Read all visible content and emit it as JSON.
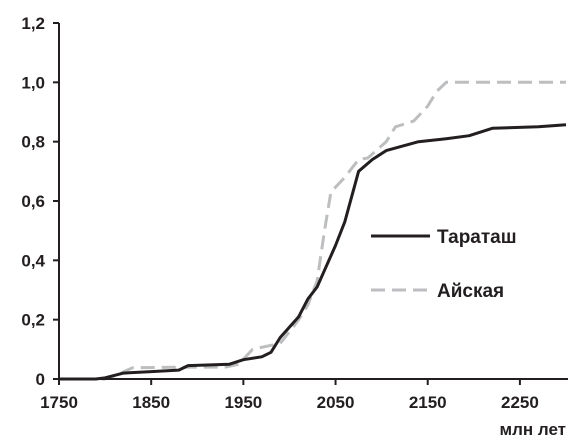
{
  "chart_data": {
    "type": "line",
    "title": "",
    "xlabel": "млн лет",
    "ylabel": "",
    "xlim": [
      1750,
      2300
    ],
    "ylim": [
      0,
      1.2
    ],
    "xticks": [
      1750,
      1850,
      1950,
      2050,
      2150,
      2250
    ],
    "xtick_labels": [
      "1750",
      "1850",
      "1950",
      "2050",
      "2150",
      "2250"
    ],
    "yticks": [
      0,
      0.2,
      0.4,
      0.6,
      0.8,
      1.0,
      1.2
    ],
    "ytick_labels": [
      "0",
      "0,2",
      "0,4",
      "0,6",
      "0,8",
      "1,0",
      "1,2"
    ],
    "grid": false,
    "legend_position": "right-center",
    "series": [
      {
        "name": "Тараташ",
        "style": "solid",
        "color": "#231f20",
        "points": [
          [
            1750,
            0
          ],
          [
            1790,
            0
          ],
          [
            1800,
            0.004
          ],
          [
            1820,
            0.02
          ],
          [
            1850,
            0.025
          ],
          [
            1880,
            0.03
          ],
          [
            1890,
            0.045
          ],
          [
            1935,
            0.05
          ],
          [
            1950,
            0.065
          ],
          [
            1970,
            0.075
          ],
          [
            1980,
            0.09
          ],
          [
            1990,
            0.14
          ],
          [
            2010,
            0.21
          ],
          [
            2020,
            0.27
          ],
          [
            2030,
            0.31
          ],
          [
            2050,
            0.45
          ],
          [
            2060,
            0.53
          ],
          [
            2075,
            0.7
          ],
          [
            2090,
            0.74
          ],
          [
            2105,
            0.77
          ],
          [
            2140,
            0.8
          ],
          [
            2170,
            0.81
          ],
          [
            2195,
            0.82
          ],
          [
            2220,
            0.845
          ],
          [
            2270,
            0.85
          ],
          [
            2300,
            0.857
          ]
        ]
      },
      {
        "name": "Айская",
        "style": "dashed",
        "color": "#bcbec0",
        "points": [
          [
            1750,
            0
          ],
          [
            1800,
            0
          ],
          [
            1810,
            0.01
          ],
          [
            1830,
            0.038
          ],
          [
            1900,
            0.04
          ],
          [
            1930,
            0.04
          ],
          [
            1945,
            0.05
          ],
          [
            1960,
            0.1
          ],
          [
            1990,
            0.12
          ],
          [
            2000,
            0.16
          ],
          [
            2010,
            0.2
          ],
          [
            2020,
            0.25
          ],
          [
            2030,
            0.33
          ],
          [
            2038,
            0.5
          ],
          [
            2045,
            0.63
          ],
          [
            2060,
            0.68
          ],
          [
            2075,
            0.74
          ],
          [
            2085,
            0.745
          ],
          [
            2105,
            0.8
          ],
          [
            2115,
            0.85
          ],
          [
            2125,
            0.86
          ],
          [
            2135,
            0.87
          ],
          [
            2150,
            0.92
          ],
          [
            2160,
            0.97
          ],
          [
            2170,
            1.0
          ],
          [
            2300,
            1.0
          ]
        ]
      }
    ]
  }
}
